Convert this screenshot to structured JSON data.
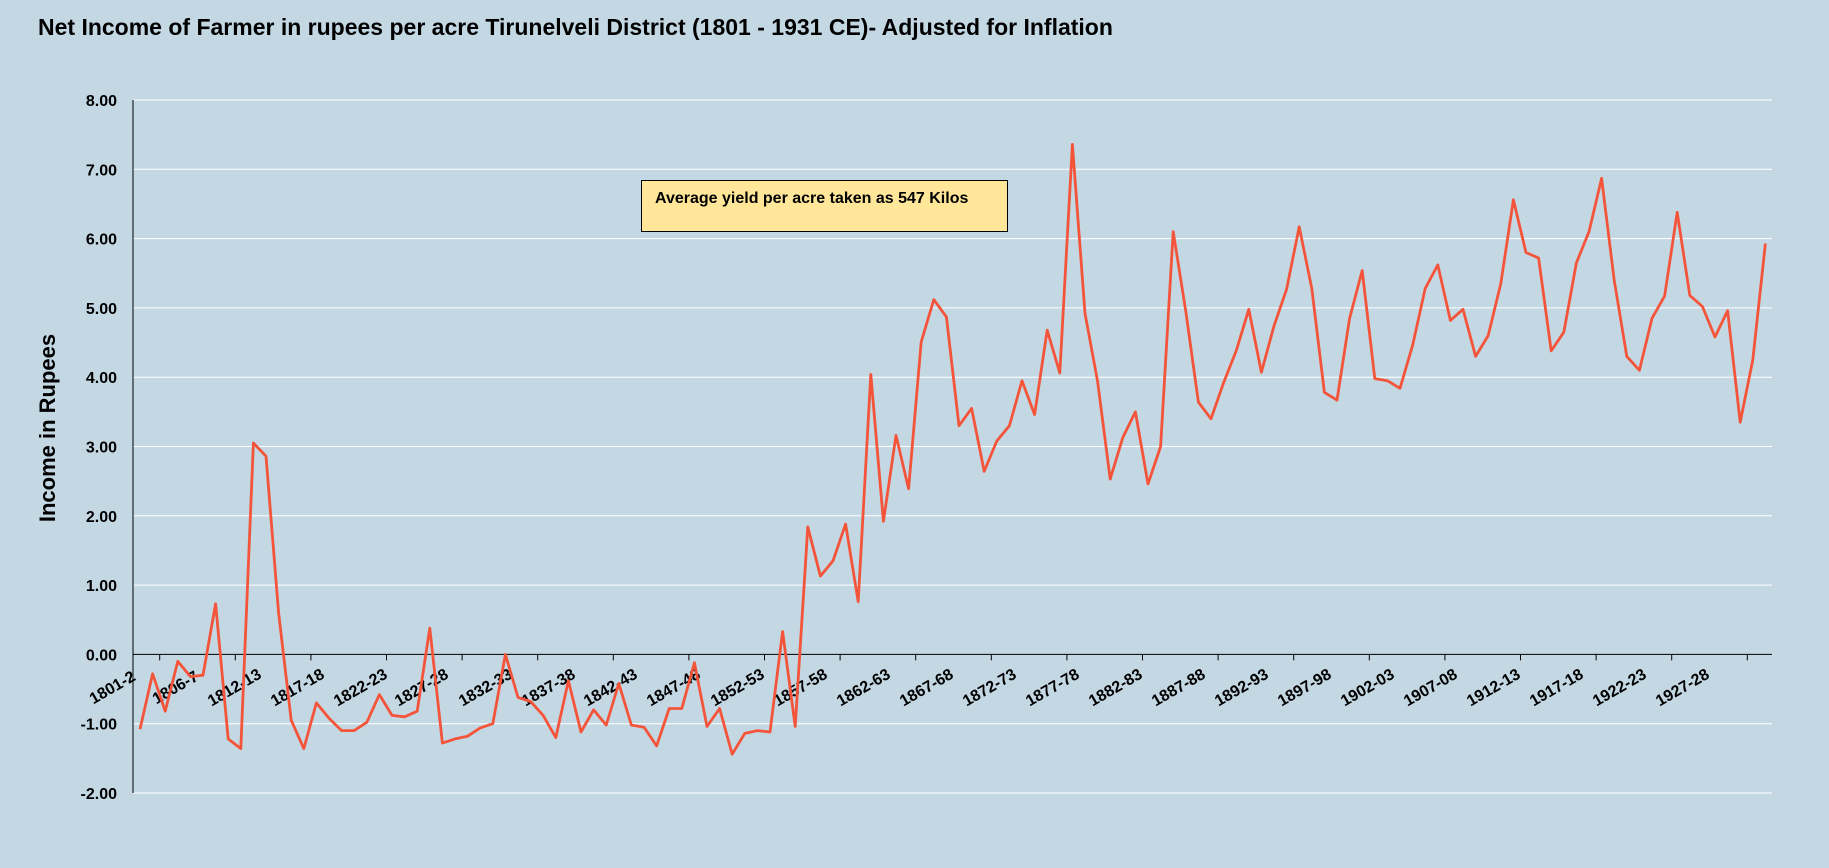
{
  "chart_data": {
    "type": "line",
    "title": "Net Income of  Farmer in rupees per acre Tirunelveli District (1801 - 1931 CE)- Adjusted for Inflation",
    "xlabel": "",
    "ylabel": "Income in Rupees",
    "ylim": [
      -2,
      8
    ],
    "yticks": [
      "-2.00",
      "-1.00",
      "0.00",
      "1.00",
      "2.00",
      "3.00",
      "4.00",
      "5.00",
      "6.00",
      "7.00",
      "8.00"
    ],
    "grid": true,
    "x_tick_labels": [
      "1801-2",
      "1806-7",
      "1812-13",
      "1817-18",
      "1822-23",
      "1827-28",
      "1832-33",
      "1837-38",
      "1842-43",
      "1847-48",
      "1852-53",
      "1857-58",
      "1862-63",
      "1867-68",
      "1872-73",
      "1877-78",
      "1882-83",
      "1887-88",
      "1892-93",
      "1897-98",
      "1902-03",
      "1907-08",
      "1912-13",
      "1917-18",
      "1922-23",
      "1927-28"
    ],
    "annotation": "Average yield per acre taken as 547 Kilos",
    "series": [
      {
        "color": "#f4553a",
        "values": [
          -1.08,
          -0.28,
          -0.82,
          -0.1,
          -0.32,
          -0.3,
          0.73,
          -1.22,
          -1.36,
          3.05,
          2.86,
          0.6,
          -0.95,
          -1.36,
          -0.7,
          -0.92,
          -1.1,
          -1.1,
          -0.98,
          -0.58,
          -0.88,
          -0.9,
          -0.82,
          0.38,
          -1.28,
          -1.22,
          -1.18,
          -1.06,
          -1.0,
          0.0,
          -0.62,
          -0.68,
          -0.88,
          -1.2,
          -0.38,
          -1.12,
          -0.8,
          -1.02,
          -0.42,
          -1.02,
          -1.05,
          -1.32,
          -0.78,
          -0.78,
          -0.12,
          -1.04,
          -0.78,
          -1.44,
          -1.14,
          -1.1,
          -1.12,
          0.33,
          -1.04,
          1.84,
          1.13,
          1.35,
          1.88,
          0.76,
          4.04,
          1.92,
          3.16,
          2.39,
          4.51,
          5.12,
          4.87,
          3.3,
          3.55,
          2.64,
          3.08,
          3.3,
          3.95,
          3.46,
          4.68,
          4.06,
          7.36,
          4.92,
          3.94,
          2.53,
          3.13,
          3.5,
          2.46,
          3.0,
          6.1,
          4.95,
          3.64,
          3.4,
          3.92,
          4.38,
          4.98,
          4.07,
          4.74,
          5.27,
          6.17,
          5.28,
          3.78,
          3.67,
          4.85,
          5.54,
          3.98,
          3.95,
          3.84,
          4.46,
          5.28,
          5.62,
          4.82,
          4.98,
          4.3,
          4.6,
          5.35,
          6.56,
          5.8,
          5.72,
          4.38,
          4.65,
          5.65,
          6.1,
          6.87,
          5.4,
          4.3,
          4.1,
          4.85,
          5.17,
          6.38,
          5.18,
          5.02,
          4.58,
          4.96,
          3.35,
          4.25,
          5.93
        ]
      }
    ]
  }
}
